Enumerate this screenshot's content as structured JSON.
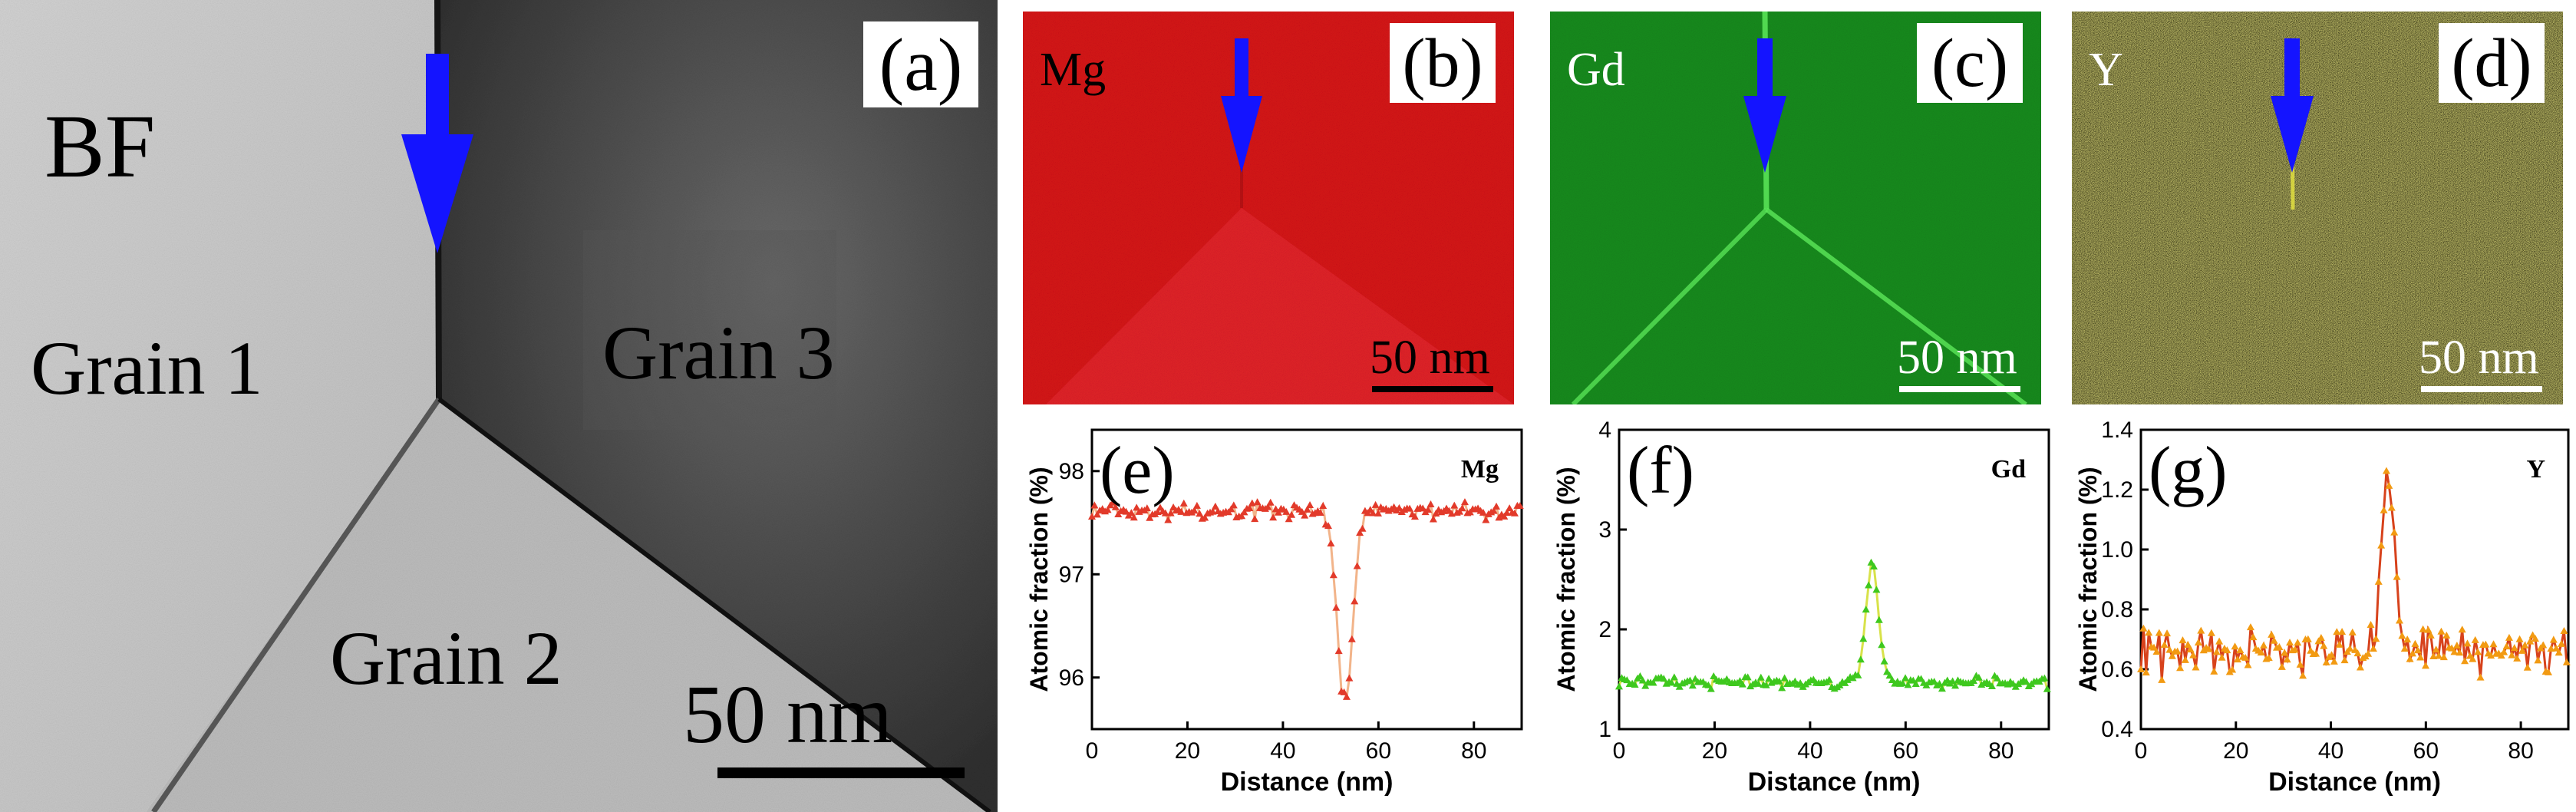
{
  "figure": {
    "panel_a": {
      "tag": "(a)",
      "mode_label": "BF",
      "grain_labels": [
        "Grain 1",
        "Grain 3",
        "Grain 2"
      ],
      "scale_bar": "50 nm"
    },
    "panel_b": {
      "tag": "(b)",
      "element": "Mg",
      "scale_bar": "50 nm",
      "color": "#d9141a"
    },
    "panel_c": {
      "tag": "(c)",
      "element": "Gd",
      "scale_bar": "50 nm",
      "color": "#138a1c"
    },
    "panel_d": {
      "tag": "(d)",
      "element": "Y",
      "scale_bar": "50 nm",
      "color": "#55521a"
    },
    "arrow_color": "#1414ff"
  },
  "chart_data": [
    {
      "type": "line",
      "tag": "(e)",
      "series_label": "Mg",
      "xlabel": "Distance (nm)",
      "ylabel": "Atomic fraction (%)",
      "xlim": [
        0,
        90
      ],
      "ylim": [
        95.5,
        98.4
      ],
      "xticks": [
        "0",
        "20",
        "40",
        "60",
        "80"
      ],
      "yticks": [
        "96",
        "97",
        "98"
      ],
      "ytick_values": [
        96,
        97,
        98
      ],
      "xtick_values": [
        0,
        20,
        40,
        60,
        80
      ],
      "baseline": 97.62,
      "noise": 0.1,
      "peak_center": 53,
      "peak_value": 95.75,
      "peak_width": 1.6,
      "marker_color": "#e23a2a",
      "line_color": "#f2b48a"
    },
    {
      "type": "line",
      "tag": "(f)",
      "series_label": "Gd",
      "xlabel": "Distance (nm)",
      "ylabel": "Atomic fraction (%)",
      "xlim": [
        0,
        90
      ],
      "ylim": [
        1,
        4
      ],
      "xticks": [
        "0",
        "20",
        "40",
        "60",
        "80"
      ],
      "yticks": [
        "1",
        "2",
        "3",
        "4"
      ],
      "ytick_values": [
        1,
        2,
        3,
        4
      ],
      "xtick_values": [
        0,
        20,
        40,
        60,
        80
      ],
      "baseline": 1.47,
      "noise": 0.07,
      "peak_center": 53,
      "peak_value": 2.65,
      "peak_width": 1.3,
      "marker_color": "#3ec81e",
      "line_color": "#d8e24a"
    },
    {
      "type": "line",
      "tag": "(g)",
      "series_label": "Y",
      "xlabel": "Distance (nm)",
      "ylabel": "Atomic fraction (%)",
      "xlim": [
        0,
        90
      ],
      "ylim": [
        0.4,
        1.4
      ],
      "xticks": [
        "0",
        "20",
        "40",
        "60",
        "80"
      ],
      "yticks": [
        "0.4",
        "0.6",
        "0.8",
        "1.0",
        "1.2",
        "1.4"
      ],
      "ytick_values": [
        0.4,
        0.6,
        0.8,
        1.0,
        1.2,
        1.4
      ],
      "xtick_values": [
        0,
        20,
        40,
        60,
        80
      ],
      "baseline": 0.66,
      "noise": 0.1,
      "peak_center": 52,
      "peak_value": 1.22,
      "peak_width": 1.4,
      "marker_color": "#f29a12",
      "line_color": "#d7421c"
    }
  ]
}
